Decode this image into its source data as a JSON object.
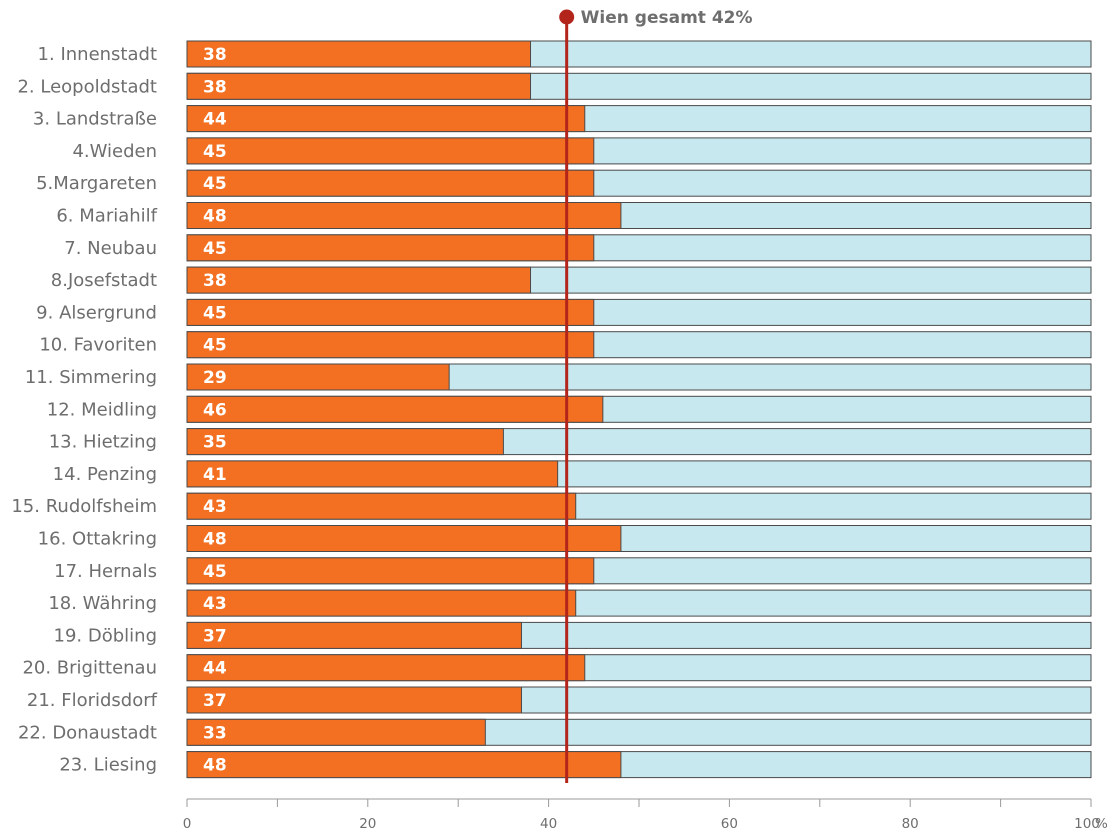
{
  "chart_data": {
    "type": "bar",
    "orientation": "horizontal",
    "stacked_to_100": true,
    "categories": [
      "1. Innenstadt",
      "2. Leopoldstadt",
      "3. Landstraße",
      "4.Wieden",
      "5.Margareten",
      "6. Mariahilf",
      "7. Neubau",
      "8.Josefstadt",
      "9. Alsergrund",
      "10. Favoriten",
      "11. Simmering",
      "12. Meidling",
      "13. Hietzing",
      "14. Penzing",
      "15. Rudolfsheim",
      "16. Ottakring",
      "17. Hernals",
      "18. Währing",
      "19. Döbling",
      "20. Brigittenau",
      "21. Floridsdorf",
      "22. Donaustadt",
      "23. Liesing"
    ],
    "values": [
      38,
      38,
      44,
      45,
      45,
      48,
      45,
      38,
      45,
      45,
      29,
      46,
      35,
      41,
      43,
      48,
      45,
      43,
      37,
      44,
      37,
      33,
      48
    ],
    "value_labels": [
      "38",
      "38",
      "44",
      "45",
      "45",
      "48",
      "45",
      "38",
      "45",
      "45",
      "29",
      "46",
      "35",
      "41",
      "43",
      "48",
      "45",
      "43",
      "37",
      "44",
      "37",
      "33",
      "48"
    ],
    "xlim": [
      0,
      100
    ],
    "x_ticks": [
      0,
      20,
      40,
      60,
      80,
      100
    ],
    "x_tick_labels": [
      "0",
      "20",
      "40",
      "60",
      "80",
      "100"
    ],
    "x_unit": "%",
    "reference_line": {
      "value": 42,
      "label": "Wien gesamt 42%"
    },
    "colors": {
      "bar": "#f36f21",
      "remainder": "#c8e8ef",
      "reference": "#b3241b",
      "text": "#6e6e6e",
      "axis": "#9a9a9a"
    }
  }
}
